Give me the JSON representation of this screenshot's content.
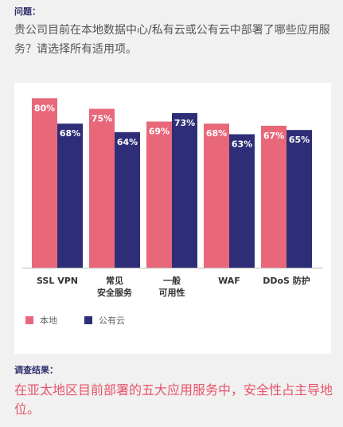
{
  "question": {
    "label": "问题：",
    "text": "贵公司目前在本地数据中心/私有云或公有云中部署了哪些应用服务？请选择所有适用项。"
  },
  "result": {
    "label": "调查结果：",
    "text": "在亚太地区目前部署的五大应用服务中，安全性占主导地位。"
  },
  "colors": {
    "local": "#e8687a",
    "public": "#2e2e78"
  },
  "chart_data": {
    "type": "bar",
    "categories": [
      [
        "SSL VPN"
      ],
      [
        "常见",
        "安全服务"
      ],
      [
        "一般",
        "可用性"
      ],
      [
        "WAF"
      ],
      [
        "DDoS 防护"
      ]
    ],
    "series": [
      {
        "name": "本地",
        "values": [
          80,
          75,
          69,
          68,
          67
        ]
      },
      {
        "name": "公有云",
        "values": [
          68,
          64,
          73,
          63,
          65
        ]
      }
    ],
    "value_suffix": "%",
    "ylim": [
      0,
      85
    ],
    "legend_position": "bottom-left",
    "grid": false
  }
}
